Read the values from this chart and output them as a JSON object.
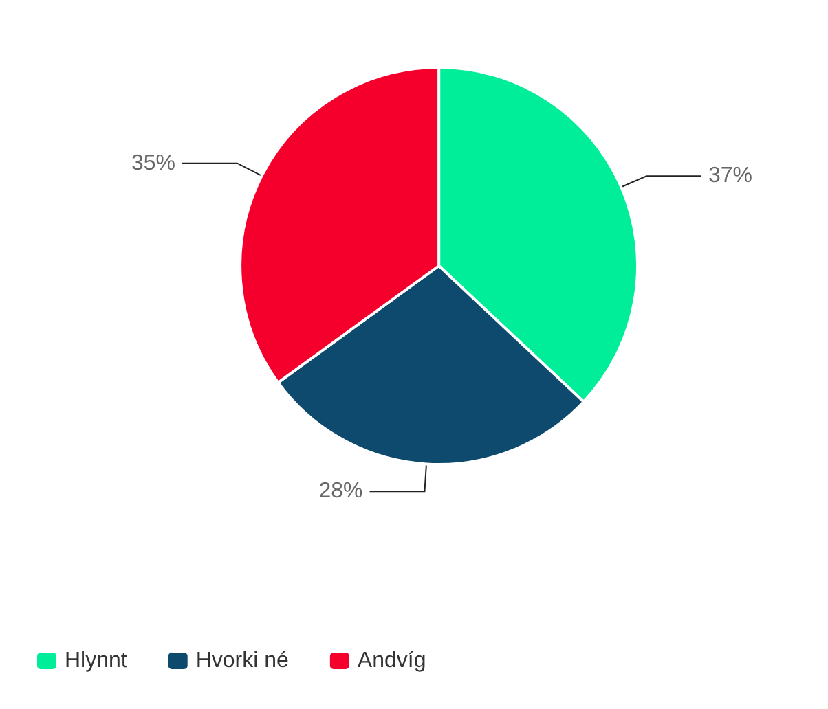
{
  "chart_data": {
    "type": "pie",
    "categories": [
      "Hlynnt",
      "Hvorki né",
      "Andvíg"
    ],
    "values": [
      37,
      28,
      35
    ],
    "colors": [
      "#00ee9a",
      "#0d4a6e",
      "#f5002d"
    ],
    "value_labels": [
      "37%",
      "28%",
      "35%"
    ],
    "legend": "bottom left"
  }
}
